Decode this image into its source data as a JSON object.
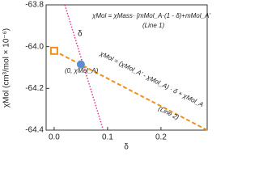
{
  "chart_data": {
    "type": "line",
    "x_label": "δ",
    "y_label": "χMol (cm³/mol × 10⁻⁶)",
    "xlim": [
      -0.015,
      0.2865
    ],
    "ylim": [
      -64.4,
      -63.8
    ],
    "xticks": [
      {
        "value": 0,
        "label": "0.0"
      },
      {
        "value": 0.1,
        "label": "0.1"
      },
      {
        "value": 0.2,
        "label": "0.2"
      }
    ],
    "yticks": [
      -64.4,
      -64.2,
      {
        "value": -64,
        "label": "-64.0"
      },
      -63.8
    ],
    "series": [
      {
        "name": "Line 1",
        "color": "#e2309c",
        "dash": "dotted",
        "x": [
          0.02,
          0.092
        ],
        "values": [
          -63.8,
          -64.4
        ]
      },
      {
        "name": "Line 2",
        "color": "#f0901c",
        "dash": "dashed",
        "x": [
          0,
          0.2865
        ],
        "values": [
          -64.02,
          -64.4
        ]
      }
    ],
    "points": [
      {
        "marker": "square",
        "color": "#f0901c",
        "x": 0,
        "value": -64.02
      },
      {
        "marker": "circle",
        "color": "#5b8fd0",
        "x": 0.05,
        "value": -64.085
      }
    ],
    "annotations": [
      "χMol = χMass· [mMol_A·(1 - δ)+mMol_A'·δ]",
      "(Line 1)",
      "χMol = (χMol_A' - χMol_A) · δ + χMol_A",
      "(Line 2)",
      "(0, χMol_A)",
      "δ"
    ]
  }
}
